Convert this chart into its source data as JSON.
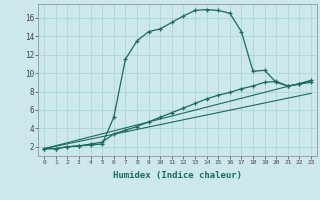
{
  "xlabel": "Humidex (Indice chaleur)",
  "background_color": "#cce8ec",
  "grid_color": "#b0d8dc",
  "line_color": "#1a6b5a",
  "xlim": [
    -0.5,
    23.5
  ],
  "ylim": [
    1.0,
    17.5
  ],
  "yticks": [
    2,
    4,
    6,
    8,
    10,
    12,
    14,
    16
  ],
  "xticks": [
    0,
    1,
    2,
    3,
    4,
    5,
    6,
    7,
    8,
    9,
    10,
    11,
    12,
    13,
    14,
    15,
    16,
    17,
    18,
    19,
    20,
    21,
    22,
    23
  ],
  "series1_x": [
    0,
    1,
    2,
    3,
    4,
    5,
    6,
    7,
    8,
    9,
    10,
    11,
    12,
    13,
    14,
    15,
    16,
    17,
    18,
    19,
    20,
    21,
    22,
    23
  ],
  "series1_y": [
    1.8,
    1.8,
    2.0,
    2.1,
    2.2,
    2.3,
    5.2,
    11.5,
    13.5,
    14.5,
    14.8,
    15.5,
    16.2,
    16.8,
    16.9,
    16.8,
    16.5,
    14.5,
    10.2,
    10.3,
    9.0,
    8.6,
    8.8,
    9.2
  ],
  "series2_x": [
    0,
    1,
    2,
    3,
    4,
    5,
    6,
    7,
    8,
    9,
    10,
    11,
    12,
    13,
    14,
    15,
    16,
    17,
    18,
    19,
    20,
    21,
    22,
    23
  ],
  "series2_y": [
    1.8,
    1.8,
    2.0,
    2.1,
    2.3,
    2.5,
    3.4,
    3.8,
    4.2,
    4.7,
    5.2,
    5.7,
    6.2,
    6.7,
    7.2,
    7.6,
    7.9,
    8.3,
    8.6,
    9.0,
    9.1,
    8.6,
    8.8,
    9.0
  ],
  "series3_x": [
    0,
    23
  ],
  "series3_y": [
    1.8,
    9.2
  ],
  "series4_x": [
    0,
    23
  ],
  "series4_y": [
    1.8,
    7.8
  ]
}
